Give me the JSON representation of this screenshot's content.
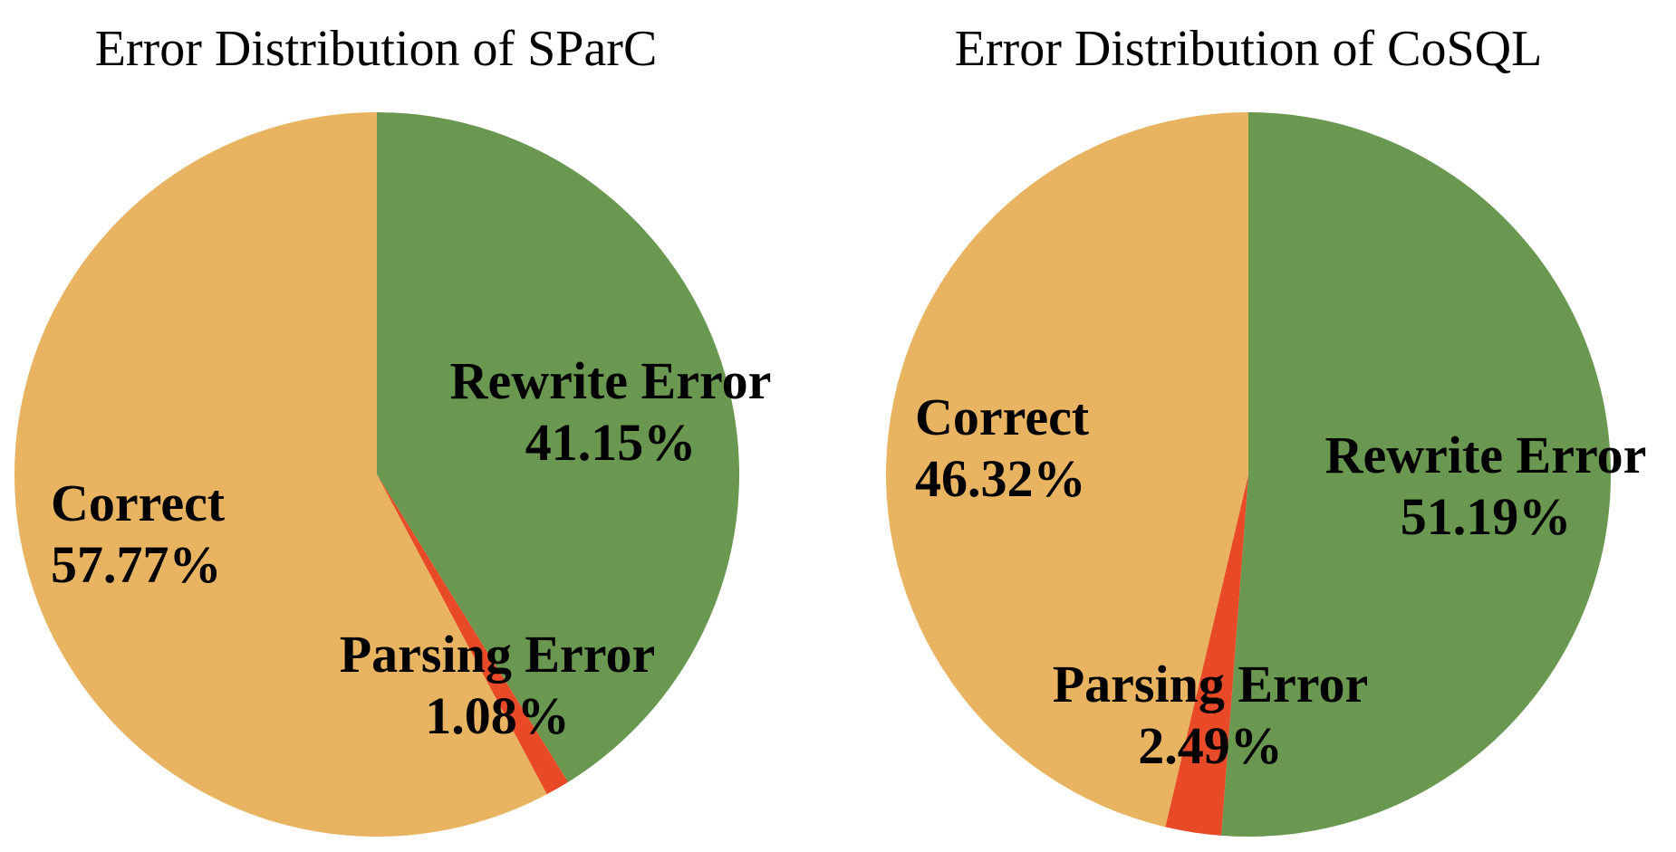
{
  "chart_data": [
    {
      "type": "pie",
      "title": "Error Distribution of SParC",
      "legend": "none",
      "start_angle_deg": 0,
      "direction": "clockwise",
      "slices": [
        {
          "label": "Rewrite Error",
          "value_label": "41.15%",
          "value": 41.15,
          "color": "#6a9850"
        },
        {
          "label": "Parsing Error",
          "value_label": "1.08%",
          "value": 1.08,
          "color": "#e84a27"
        },
        {
          "label": "Correct",
          "value_label": "57.77%",
          "value": 57.77,
          "color": "#e8b462"
        }
      ]
    },
    {
      "type": "pie",
      "title": "Error Distribution of CoSQL",
      "legend": "none",
      "start_angle_deg": 0,
      "direction": "clockwise",
      "slices": [
        {
          "label": "Rewrite Error",
          "value_label": "51.19%",
          "value": 51.19,
          "color": "#6a9850"
        },
        {
          "label": "Parsing Error",
          "value_label": "2.49%",
          "value": 2.49,
          "color": "#e84a27"
        },
        {
          "label": "Correct",
          "value_label": "46.32%",
          "value": 46.32,
          "color": "#e8b462"
        }
      ]
    }
  ]
}
